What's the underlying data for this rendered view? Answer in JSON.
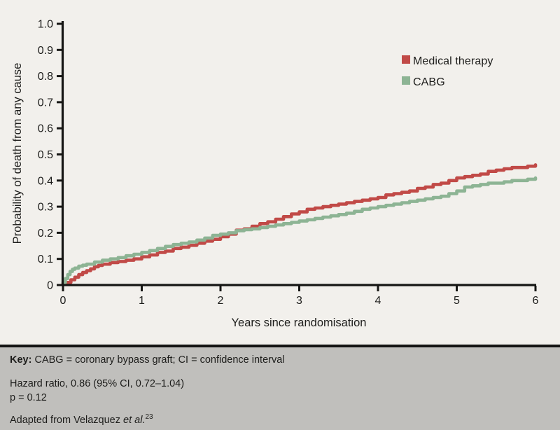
{
  "figure": {
    "background_color": "#f2f0ec",
    "text_color": "#1d1d1b",
    "axis_color": "#161614"
  },
  "chart_data": {
    "type": "line",
    "subtype": "kaplan-meier-step-curve",
    "title": "",
    "xlabel": "Years since randomisation",
    "ylabel": "Probability of death from any cause",
    "xlim": [
      0,
      6
    ],
    "ylim": [
      0,
      1.0
    ],
    "grid": false,
    "legend_position": "upper-right-inside",
    "x_ticks": [
      0,
      1,
      2,
      3,
      4,
      5,
      6
    ],
    "x_tick_labels": [
      "0",
      "1",
      "2",
      "3",
      "4",
      "5",
      "6"
    ],
    "y_ticks": [
      0,
      0.1,
      0.2,
      0.3,
      0.4,
      0.5,
      0.6,
      0.7,
      0.8,
      0.9,
      1.0
    ],
    "y_tick_labels": [
      "0",
      "0.1",
      "0.2",
      "0.3",
      "0.4",
      "0.5",
      "0.6",
      "0.7",
      "0.8",
      "0.9",
      "1.0"
    ],
    "series": [
      {
        "name": "Medical therapy",
        "color": "#c14a47",
        "points": [
          [
            0,
            0.005
          ],
          [
            0.05,
            0.01
          ],
          [
            0.1,
            0.02
          ],
          [
            0.15,
            0.03
          ],
          [
            0.2,
            0.04
          ],
          [
            0.25,
            0.048
          ],
          [
            0.3,
            0.055
          ],
          [
            0.35,
            0.062
          ],
          [
            0.4,
            0.07
          ],
          [
            0.45,
            0.075
          ],
          [
            0.5,
            0.08
          ],
          [
            0.6,
            0.086
          ],
          [
            0.7,
            0.09
          ],
          [
            0.8,
            0.095
          ],
          [
            0.9,
            0.1
          ],
          [
            1.0,
            0.108
          ],
          [
            1.1,
            0.115
          ],
          [
            1.2,
            0.125
          ],
          [
            1.3,
            0.13
          ],
          [
            1.4,
            0.14
          ],
          [
            1.5,
            0.145
          ],
          [
            1.6,
            0.152
          ],
          [
            1.7,
            0.16
          ],
          [
            1.8,
            0.168
          ],
          [
            1.9,
            0.175
          ],
          [
            2.0,
            0.185
          ],
          [
            2.1,
            0.195
          ],
          [
            2.2,
            0.21
          ],
          [
            2.3,
            0.215
          ],
          [
            2.4,
            0.225
          ],
          [
            2.5,
            0.235
          ],
          [
            2.6,
            0.242
          ],
          [
            2.7,
            0.252
          ],
          [
            2.8,
            0.262
          ],
          [
            2.9,
            0.272
          ],
          [
            3.0,
            0.28
          ],
          [
            3.1,
            0.29
          ],
          [
            3.2,
            0.295
          ],
          [
            3.3,
            0.3
          ],
          [
            3.4,
            0.305
          ],
          [
            3.5,
            0.31
          ],
          [
            3.6,
            0.315
          ],
          [
            3.7,
            0.32
          ],
          [
            3.8,
            0.325
          ],
          [
            3.9,
            0.33
          ],
          [
            4.0,
            0.335
          ],
          [
            4.1,
            0.345
          ],
          [
            4.2,
            0.35
          ],
          [
            4.3,
            0.355
          ],
          [
            4.4,
            0.36
          ],
          [
            4.5,
            0.37
          ],
          [
            4.6,
            0.375
          ],
          [
            4.7,
            0.385
          ],
          [
            4.8,
            0.39
          ],
          [
            4.9,
            0.4
          ],
          [
            5.0,
            0.41
          ],
          [
            5.1,
            0.415
          ],
          [
            5.2,
            0.42
          ],
          [
            5.3,
            0.425
          ],
          [
            5.4,
            0.435
          ],
          [
            5.5,
            0.44
          ],
          [
            5.6,
            0.445
          ],
          [
            5.7,
            0.45
          ],
          [
            5.8,
            0.45
          ],
          [
            5.9,
            0.455
          ],
          [
            6.0,
            0.46
          ]
        ]
      },
      {
        "name": "CABG",
        "color": "#8db494",
        "points": [
          [
            0,
            0.01
          ],
          [
            0.03,
            0.025
          ],
          [
            0.06,
            0.04
          ],
          [
            0.09,
            0.052
          ],
          [
            0.12,
            0.06
          ],
          [
            0.15,
            0.065
          ],
          [
            0.2,
            0.072
          ],
          [
            0.25,
            0.076
          ],
          [
            0.3,
            0.08
          ],
          [
            0.4,
            0.088
          ],
          [
            0.5,
            0.095
          ],
          [
            0.6,
            0.1
          ],
          [
            0.7,
            0.105
          ],
          [
            0.8,
            0.112
          ],
          [
            0.9,
            0.118
          ],
          [
            1.0,
            0.125
          ],
          [
            1.1,
            0.132
          ],
          [
            1.2,
            0.14
          ],
          [
            1.3,
            0.148
          ],
          [
            1.4,
            0.155
          ],
          [
            1.5,
            0.16
          ],
          [
            1.6,
            0.165
          ],
          [
            1.7,
            0.172
          ],
          [
            1.8,
            0.18
          ],
          [
            1.9,
            0.19
          ],
          [
            2.0,
            0.195
          ],
          [
            2.1,
            0.2
          ],
          [
            2.2,
            0.208
          ],
          [
            2.3,
            0.212
          ],
          [
            2.4,
            0.215
          ],
          [
            2.5,
            0.22
          ],
          [
            2.6,
            0.225
          ],
          [
            2.7,
            0.23
          ],
          [
            2.8,
            0.235
          ],
          [
            2.9,
            0.24
          ],
          [
            3.0,
            0.245
          ],
          [
            3.1,
            0.25
          ],
          [
            3.2,
            0.255
          ],
          [
            3.3,
            0.26
          ],
          [
            3.4,
            0.265
          ],
          [
            3.5,
            0.27
          ],
          [
            3.6,
            0.275
          ],
          [
            3.7,
            0.282
          ],
          [
            3.8,
            0.29
          ],
          [
            3.9,
            0.295
          ],
          [
            4.0,
            0.3
          ],
          [
            4.1,
            0.305
          ],
          [
            4.2,
            0.31
          ],
          [
            4.3,
            0.315
          ],
          [
            4.4,
            0.32
          ],
          [
            4.5,
            0.325
          ],
          [
            4.6,
            0.33
          ],
          [
            4.7,
            0.335
          ],
          [
            4.8,
            0.34
          ],
          [
            4.9,
            0.35
          ],
          [
            5.0,
            0.36
          ],
          [
            5.1,
            0.375
          ],
          [
            5.2,
            0.38
          ],
          [
            5.3,
            0.385
          ],
          [
            5.4,
            0.39
          ],
          [
            5.5,
            0.39
          ],
          [
            5.6,
            0.395
          ],
          [
            5.7,
            0.4
          ],
          [
            5.8,
            0.4
          ],
          [
            5.9,
            0.405
          ],
          [
            6.0,
            0.41
          ]
        ]
      }
    ]
  },
  "footer": {
    "background_color": "#c0bfbc",
    "key_label": "Key:",
    "key_text": " CABG = coronary bypass graft; CI = confidence interval",
    "hazard_line": "Hazard ratio, 0.86 (95% CI, 0.72–1.04)",
    "p_line": "p = 0.12",
    "adapted_prefix": "Adapted from Velazquez ",
    "adapted_italic": "et al.",
    "adapted_superscript": "23"
  }
}
